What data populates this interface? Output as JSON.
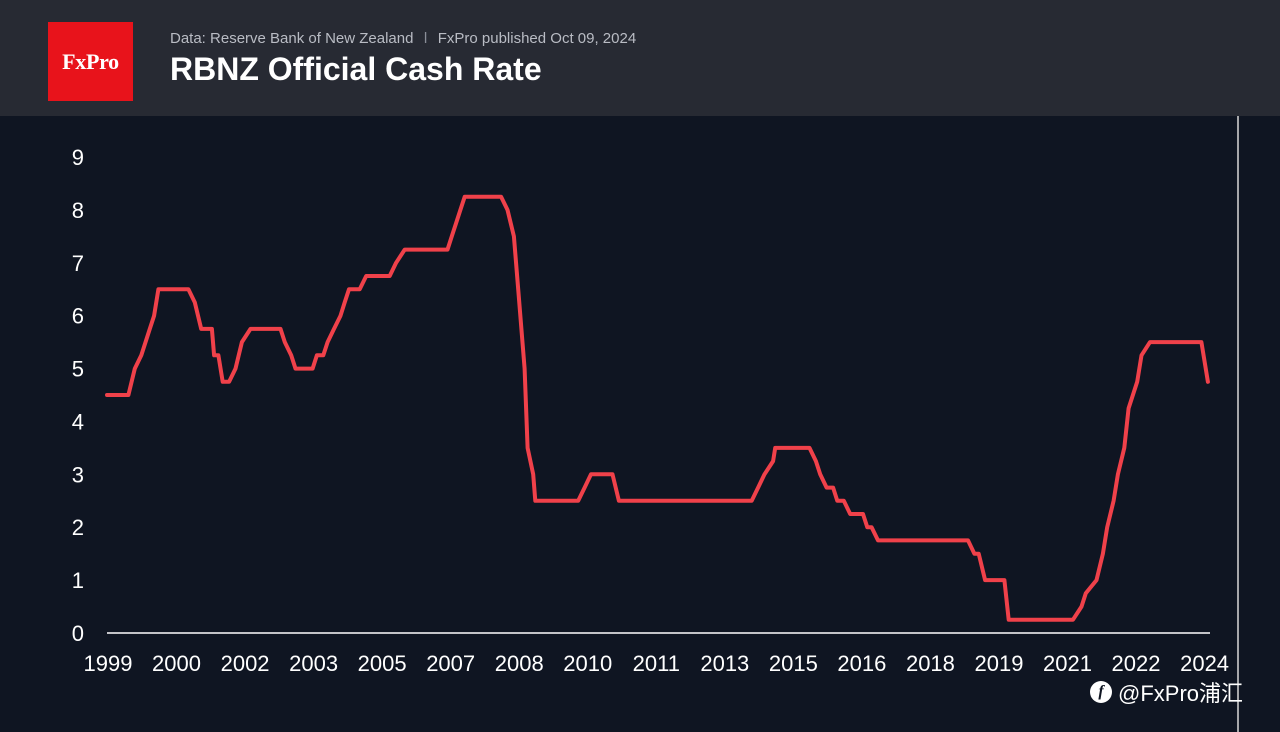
{
  "header": {
    "logo_text": "FxPro",
    "source": "Data: Reserve Bank of New Zealand",
    "separator": "ǀ",
    "published": "FxPro published Oct 09, 2024",
    "title": "RBNZ Official Cash Rate"
  },
  "watermark": {
    "icon": "f",
    "text": "@FxPro浦汇"
  },
  "colors": {
    "background": "#0f1522",
    "header": "#272a33",
    "logo": "#e8131b",
    "line": "#f0414a"
  },
  "chart_data": {
    "type": "line",
    "title": "RBNZ Official Cash Rate",
    "ylim": [
      0,
      9
    ],
    "yticks": [
      0,
      1,
      2,
      3,
      4,
      5,
      6,
      7,
      8,
      9
    ],
    "xlim": [
      1999.0,
      2024.75
    ],
    "xtick_labels": [
      {
        "label": "1999",
        "x": 1999.0
      },
      {
        "label": "2000",
        "x": 2000.6
      },
      {
        "label": "2002",
        "x": 2002.2
      },
      {
        "label": "2003",
        "x": 2003.8
      },
      {
        "label": "2005",
        "x": 2005.4
      },
      {
        "label": "2007",
        "x": 2007.0
      },
      {
        "label": "2008",
        "x": 2008.6
      },
      {
        "label": "2010",
        "x": 2010.2
      },
      {
        "label": "2011",
        "x": 2011.8
      },
      {
        "label": "2013",
        "x": 2013.4
      },
      {
        "label": "2015",
        "x": 2015.0
      },
      {
        "label": "2016",
        "x": 2016.6
      },
      {
        "label": "2018",
        "x": 2018.2
      },
      {
        "label": "2019",
        "x": 2019.8
      },
      {
        "label": "2021",
        "x": 2021.4
      },
      {
        "label": "2022",
        "x": 2023.0
      },
      {
        "label": "2024",
        "x": 2024.6
      }
    ],
    "grid": false,
    "series": [
      {
        "points": [
          [
            1999.0,
            4.5
          ],
          [
            1999.5,
            4.5
          ],
          [
            1999.65,
            5.0
          ],
          [
            1999.8,
            5.25
          ],
          [
            2000.0,
            5.75
          ],
          [
            2000.1,
            6.0
          ],
          [
            2000.2,
            6.5
          ],
          [
            2000.9,
            6.5
          ],
          [
            2001.05,
            6.25
          ],
          [
            2001.2,
            5.75
          ],
          [
            2001.45,
            5.75
          ],
          [
            2001.5,
            5.25
          ],
          [
            2001.6,
            5.25
          ],
          [
            2001.7,
            4.75
          ],
          [
            2001.85,
            4.75
          ],
          [
            2002.0,
            5.0
          ],
          [
            2002.15,
            5.5
          ],
          [
            2002.35,
            5.75
          ],
          [
            2003.05,
            5.75
          ],
          [
            2003.15,
            5.5
          ],
          [
            2003.3,
            5.25
          ],
          [
            2003.4,
            5.0
          ],
          [
            2003.8,
            5.0
          ],
          [
            2003.9,
            5.25
          ],
          [
            2004.05,
            5.25
          ],
          [
            2004.15,
            5.5
          ],
          [
            2004.3,
            5.75
          ],
          [
            2004.45,
            6.0
          ],
          [
            2004.55,
            6.25
          ],
          [
            2004.65,
            6.5
          ],
          [
            2004.9,
            6.5
          ],
          [
            2005.05,
            6.75
          ],
          [
            2005.6,
            6.75
          ],
          [
            2005.75,
            7.0
          ],
          [
            2005.95,
            7.25
          ],
          [
            2006.95,
            7.25
          ],
          [
            2007.05,
            7.5
          ],
          [
            2007.15,
            7.75
          ],
          [
            2007.25,
            8.0
          ],
          [
            2007.35,
            8.25
          ],
          [
            2008.2,
            8.25
          ],
          [
            2008.35,
            8.0
          ],
          [
            2008.5,
            7.5
          ],
          [
            2008.6,
            6.5
          ],
          [
            2008.75,
            5.0
          ],
          [
            2008.82,
            3.5
          ],
          [
            2008.95,
            3.0
          ],
          [
            2009.0,
            2.5
          ],
          [
            2010.0,
            2.5
          ],
          [
            2010.15,
            2.75
          ],
          [
            2010.3,
            3.0
          ],
          [
            2010.8,
            3.0
          ],
          [
            2010.95,
            2.5
          ],
          [
            2014.05,
            2.5
          ],
          [
            2014.2,
            2.75
          ],
          [
            2014.35,
            3.0
          ],
          [
            2014.55,
            3.25
          ],
          [
            2014.6,
            3.5
          ],
          [
            2015.4,
            3.5
          ],
          [
            2015.55,
            3.25
          ],
          [
            2015.65,
            3.0
          ],
          [
            2015.8,
            2.75
          ],
          [
            2015.95,
            2.75
          ],
          [
            2016.05,
            2.5
          ],
          [
            2016.2,
            2.5
          ],
          [
            2016.35,
            2.25
          ],
          [
            2016.65,
            2.25
          ],
          [
            2016.75,
            2.0
          ],
          [
            2016.85,
            2.0
          ],
          [
            2017.0,
            1.75
          ],
          [
            2019.1,
            1.75
          ],
          [
            2019.25,
            1.5
          ],
          [
            2019.35,
            1.5
          ],
          [
            2019.5,
            1.0
          ],
          [
            2019.95,
            1.0
          ],
          [
            2020.05,
            0.25
          ],
          [
            2021.55,
            0.25
          ],
          [
            2021.75,
            0.5
          ],
          [
            2021.85,
            0.75
          ],
          [
            2022.1,
            1.0
          ],
          [
            2022.25,
            1.5
          ],
          [
            2022.35,
            2.0
          ],
          [
            2022.5,
            2.5
          ],
          [
            2022.6,
            3.0
          ],
          [
            2022.75,
            3.5
          ],
          [
            2022.85,
            4.25
          ],
          [
            2023.05,
            4.75
          ],
          [
            2023.15,
            5.25
          ],
          [
            2023.35,
            5.5
          ],
          [
            2024.55,
            5.5
          ],
          [
            2024.7,
            4.75
          ]
        ]
      }
    ]
  }
}
